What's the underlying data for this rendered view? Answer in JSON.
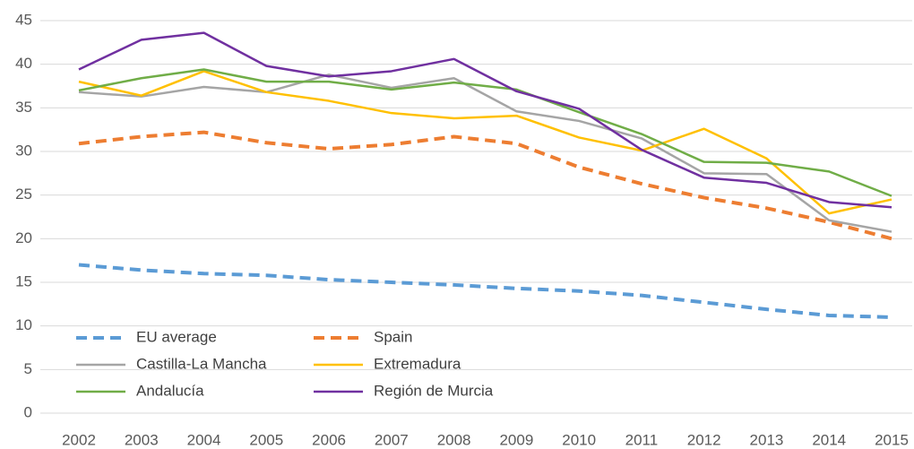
{
  "chart_data": {
    "type": "line",
    "categories": [
      "2002",
      "2003",
      "2004",
      "2005",
      "2006",
      "2007",
      "2008",
      "2009",
      "2010",
      "2011",
      "2012",
      "2013",
      "2014",
      "2015"
    ],
    "ylim": [
      0,
      45
    ],
    "yticks": [
      0,
      5,
      10,
      15,
      20,
      25,
      30,
      35,
      40,
      45
    ],
    "grid": true,
    "legend": "lower left",
    "series": [
      {
        "name": "EU average",
        "color": "#5b9bd5",
        "dashed": true,
        "values": [
          17.0,
          16.4,
          16.0,
          15.8,
          15.3,
          15.0,
          14.7,
          14.3,
          14.0,
          13.5,
          12.7,
          11.9,
          11.2,
          11.0
        ]
      },
      {
        "name": "Spain",
        "color": "#ed7d31",
        "dashed": true,
        "values": [
          30.9,
          31.7,
          32.2,
          31.0,
          30.3,
          30.8,
          31.7,
          30.9,
          28.2,
          26.3,
          24.7,
          23.5,
          21.9,
          20.0
        ]
      },
      {
        "name": "Castilla-La Mancha",
        "color": "#a5a5a5",
        "dashed": false,
        "values": [
          36.8,
          36.3,
          37.4,
          36.8,
          38.8,
          37.3,
          38.4,
          34.6,
          33.5,
          31.5,
          27.5,
          27.4,
          22.1,
          20.8
        ]
      },
      {
        "name": "Extremadura",
        "color": "#ffc000",
        "dashed": false,
        "values": [
          38.0,
          36.4,
          39.2,
          36.8,
          35.8,
          34.4,
          33.8,
          34.1,
          31.6,
          30.1,
          32.6,
          29.2,
          22.9,
          24.5
        ]
      },
      {
        "name": "Andalucía",
        "color": "#70ad47",
        "dashed": false,
        "values": [
          37.0,
          38.4,
          39.4,
          38.0,
          38.0,
          37.1,
          37.9,
          37.1,
          34.5,
          32.0,
          28.8,
          28.7,
          27.7,
          24.9
        ]
      },
      {
        "name": "Región de Murcia",
        "color": "#7030a0",
        "dashed": false,
        "values": [
          39.4,
          42.8,
          43.6,
          39.8,
          38.6,
          39.2,
          40.6,
          36.9,
          34.9,
          30.2,
          27.0,
          26.4,
          24.2,
          23.6
        ]
      }
    ]
  }
}
